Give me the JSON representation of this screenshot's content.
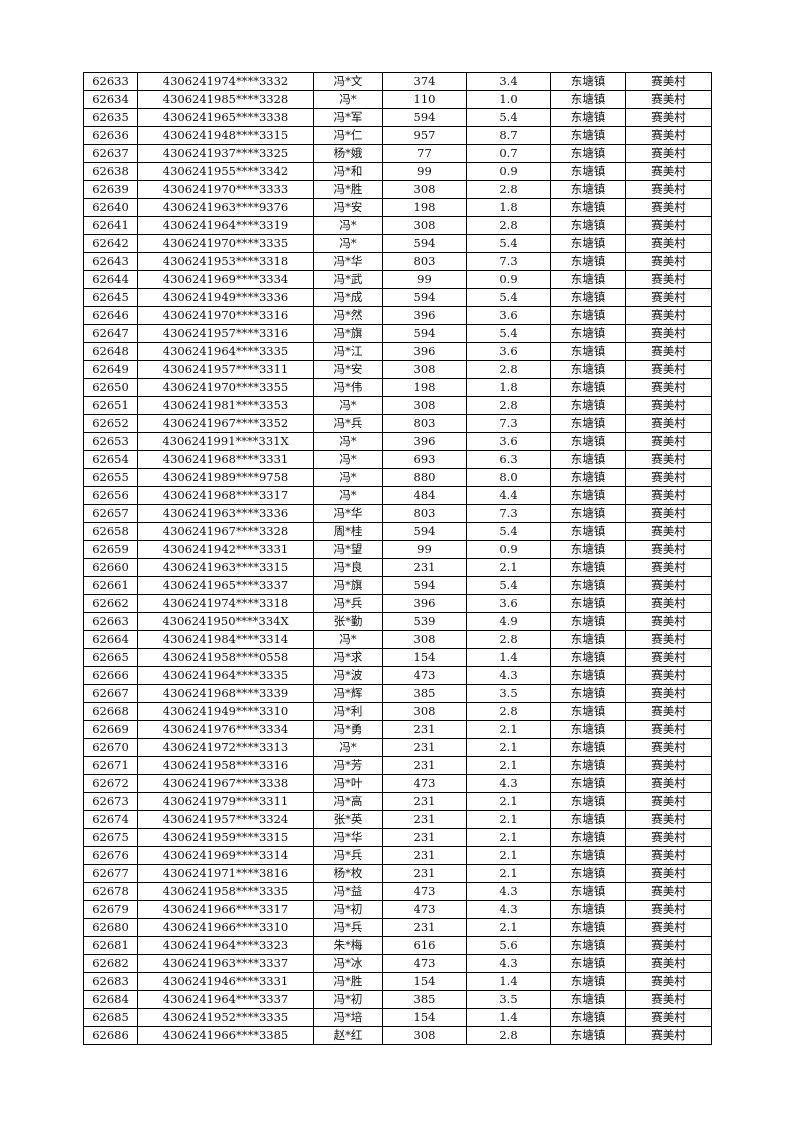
{
  "table": {
    "rows": [
      [
        "62633",
        "4306241974****3332",
        "冯*文",
        "374",
        "3.4",
        "东塘镇",
        "赛美村"
      ],
      [
        "62634",
        "4306241985****3328",
        "冯*",
        "110",
        "1.0",
        "东塘镇",
        "赛美村"
      ],
      [
        "62635",
        "4306241965****3338",
        "冯*军",
        "594",
        "5.4",
        "东塘镇",
        "赛美村"
      ],
      [
        "62636",
        "4306241948****3315",
        "冯*仁",
        "957",
        "8.7",
        "东塘镇",
        "赛美村"
      ],
      [
        "62637",
        "4306241937****3325",
        "杨*娥",
        "77",
        "0.7",
        "东塘镇",
        "赛美村"
      ],
      [
        "62638",
        "4306241955****3342",
        "冯*和",
        "99",
        "0.9",
        "东塘镇",
        "赛美村"
      ],
      [
        "62639",
        "4306241970****3333",
        "冯*胜",
        "308",
        "2.8",
        "东塘镇",
        "赛美村"
      ],
      [
        "62640",
        "4306241963****9376",
        "冯*安",
        "198",
        "1.8",
        "东塘镇",
        "赛美村"
      ],
      [
        "62641",
        "4306241964****3319",
        "冯*",
        "308",
        "2.8",
        "东塘镇",
        "赛美村"
      ],
      [
        "62642",
        "4306241970****3335",
        "冯*",
        "594",
        "5.4",
        "东塘镇",
        "赛美村"
      ],
      [
        "62643",
        "4306241953****3318",
        "冯*华",
        "803",
        "7.3",
        "东塘镇",
        "赛美村"
      ],
      [
        "62644",
        "4306241969****3334",
        "冯*武",
        "99",
        "0.9",
        "东塘镇",
        "赛美村"
      ],
      [
        "62645",
        "4306241949****3336",
        "冯*成",
        "594",
        "5.4",
        "东塘镇",
        "赛美村"
      ],
      [
        "62646",
        "4306241970****3316",
        "冯*然",
        "396",
        "3.6",
        "东塘镇",
        "赛美村"
      ],
      [
        "62647",
        "4306241957****3316",
        "冯*旗",
        "594",
        "5.4",
        "东塘镇",
        "赛美村"
      ],
      [
        "62648",
        "4306241964****3335",
        "冯*江",
        "396",
        "3.6",
        "东塘镇",
        "赛美村"
      ],
      [
        "62649",
        "4306241957****3311",
        "冯*安",
        "308",
        "2.8",
        "东塘镇",
        "赛美村"
      ],
      [
        "62650",
        "4306241970****3355",
        "冯*伟",
        "198",
        "1.8",
        "东塘镇",
        "赛美村"
      ],
      [
        "62651",
        "4306241981****3353",
        "冯*",
        "308",
        "2.8",
        "东塘镇",
        "赛美村"
      ],
      [
        "62652",
        "4306241967****3352",
        "冯*兵",
        "803",
        "7.3",
        "东塘镇",
        "赛美村"
      ],
      [
        "62653",
        "4306241991****331X",
        "冯*",
        "396",
        "3.6",
        "东塘镇",
        "赛美村"
      ],
      [
        "62654",
        "4306241968****3331",
        "冯*",
        "693",
        "6.3",
        "东塘镇",
        "赛美村"
      ],
      [
        "62655",
        "4306241989****9758",
        "冯*",
        "880",
        "8.0",
        "东塘镇",
        "赛美村"
      ],
      [
        "62656",
        "4306241968****3317",
        "冯*",
        "484",
        "4.4",
        "东塘镇",
        "赛美村"
      ],
      [
        "62657",
        "4306241963****3336",
        "冯*华",
        "803",
        "7.3",
        "东塘镇",
        "赛美村"
      ],
      [
        "62658",
        "4306241967****3328",
        "周*桂",
        "594",
        "5.4",
        "东塘镇",
        "赛美村"
      ],
      [
        "62659",
        "4306241942****3331",
        "冯*望",
        "99",
        "0.9",
        "东塘镇",
        "赛美村"
      ],
      [
        "62660",
        "4306241963****3315",
        "冯*良",
        "231",
        "2.1",
        "东塘镇",
        "赛美村"
      ],
      [
        "62661",
        "4306241965****3337",
        "冯*旗",
        "594",
        "5.4",
        "东塘镇",
        "赛美村"
      ],
      [
        "62662",
        "4306241974****3318",
        "冯*兵",
        "396",
        "3.6",
        "东塘镇",
        "赛美村"
      ],
      [
        "62663",
        "4306241950****334X",
        "张*勤",
        "539",
        "4.9",
        "东塘镇",
        "赛美村"
      ],
      [
        "62664",
        "4306241984****3314",
        "冯*",
        "308",
        "2.8",
        "东塘镇",
        "赛美村"
      ],
      [
        "62665",
        "4306241958****0558",
        "冯*求",
        "154",
        "1.4",
        "东塘镇",
        "赛美村"
      ],
      [
        "62666",
        "4306241964****3335",
        "冯*波",
        "473",
        "4.3",
        "东塘镇",
        "赛美村"
      ],
      [
        "62667",
        "4306241968****3339",
        "冯*辉",
        "385",
        "3.5",
        "东塘镇",
        "赛美村"
      ],
      [
        "62668",
        "4306241949****3310",
        "冯*利",
        "308",
        "2.8",
        "东塘镇",
        "赛美村"
      ],
      [
        "62669",
        "4306241976****3334",
        "冯*勇",
        "231",
        "2.1",
        "东塘镇",
        "赛美村"
      ],
      [
        "62670",
        "4306241972****3313",
        "冯*",
        "231",
        "2.1",
        "东塘镇",
        "赛美村"
      ],
      [
        "62671",
        "4306241958****3316",
        "冯*芳",
        "231",
        "2.1",
        "东塘镇",
        "赛美村"
      ],
      [
        "62672",
        "4306241967****3338",
        "冯*叶",
        "473",
        "4.3",
        "东塘镇",
        "赛美村"
      ],
      [
        "62673",
        "4306241979****3311",
        "冯*高",
        "231",
        "2.1",
        "东塘镇",
        "赛美村"
      ],
      [
        "62674",
        "4306241957****3324",
        "张*英",
        "231",
        "2.1",
        "东塘镇",
        "赛美村"
      ],
      [
        "62675",
        "4306241959****3315",
        "冯*华",
        "231",
        "2.1",
        "东塘镇",
        "赛美村"
      ],
      [
        "62676",
        "4306241969****3314",
        "冯*兵",
        "231",
        "2.1",
        "东塘镇",
        "赛美村"
      ],
      [
        "62677",
        "4306241971****3816",
        "杨*枚",
        "231",
        "2.1",
        "东塘镇",
        "赛美村"
      ],
      [
        "62678",
        "4306241958****3335",
        "冯*益",
        "473",
        "4.3",
        "东塘镇",
        "赛美村"
      ],
      [
        "62679",
        "4306241966****3317",
        "冯*初",
        "473",
        "4.3",
        "东塘镇",
        "赛美村"
      ],
      [
        "62680",
        "4306241966****3310",
        "冯*兵",
        "231",
        "2.1",
        "东塘镇",
        "赛美村"
      ],
      [
        "62681",
        "4306241964****3323",
        "朱*梅",
        "616",
        "5.6",
        "东塘镇",
        "赛美村"
      ],
      [
        "62682",
        "4306241963****3337",
        "冯*冰",
        "473",
        "4.3",
        "东塘镇",
        "赛美村"
      ],
      [
        "62683",
        "4306241946****3331",
        "冯*胜",
        "154",
        "1.4",
        "东塘镇",
        "赛美村"
      ],
      [
        "62684",
        "4306241964****3337",
        "冯*初",
        "385",
        "3.5",
        "东塘镇",
        "赛美村"
      ],
      [
        "62685",
        "4306241952****3335",
        "冯*培",
        "154",
        "1.4",
        "东塘镇",
        "赛美村"
      ],
      [
        "62686",
        "4306241966****3385",
        "赵*红",
        "308",
        "2.8",
        "东塘镇",
        "赛美村"
      ]
    ]
  }
}
